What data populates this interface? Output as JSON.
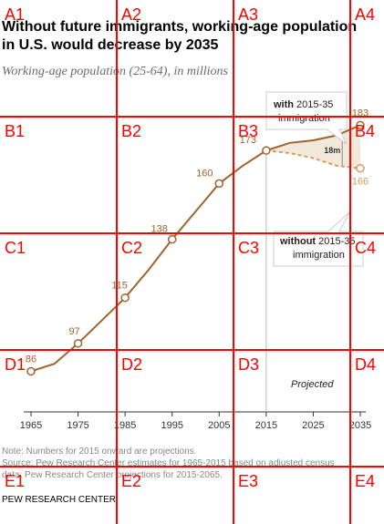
{
  "chart_data": {
    "type": "line",
    "title_line1": "Without future immigrants, working-age population",
    "title_line2": "in U.S. would decrease by 2035",
    "subtitle": "Working-age population (25-64), in millions",
    "x_ticks": [
      1965,
      1975,
      1985,
      1995,
      2005,
      2015,
      2025,
      2035
    ],
    "xlim": [
      1965,
      2035
    ],
    "ylim": [
      70,
      200
    ],
    "series": [
      {
        "name": "with 2015-35 immigration",
        "color": "#a0632c",
        "x": [
          1965,
          1970,
          1975,
          1980,
          1985,
          1990,
          1995,
          2000,
          2005,
          2010,
          2015,
          2020,
          2025,
          2030,
          2035
        ],
        "y": [
          86,
          89,
          97,
          106,
          115,
          126,
          138,
          149,
          160,
          167,
          173,
          176,
          177,
          179,
          183
        ],
        "labeled_points": [
          {
            "x": 1965,
            "y": 86,
            "label": "86"
          },
          {
            "x": 1975,
            "y": 97,
            "label": "97"
          },
          {
            "x": 1985,
            "y": 115,
            "label": "115"
          },
          {
            "x": 1995,
            "y": 138,
            "label": "138"
          },
          {
            "x": 2005,
            "y": 160,
            "label": "160"
          },
          {
            "x": 2015,
            "y": 173,
            "label": "173"
          },
          {
            "x": 2035,
            "y": 183,
            "label": "183"
          }
        ]
      },
      {
        "name": "without 2015-35 immigration",
        "color": "#d99a5a",
        "dashed": true,
        "x": [
          2015,
          2020,
          2025,
          2030,
          2035
        ],
        "y": [
          173,
          172,
          170,
          167,
          166
        ],
        "labeled_points": [
          {
            "x": 2035,
            "y": 166,
            "label": "166"
          }
        ]
      }
    ],
    "gap_label": "18m",
    "projection_divider_x": 2015,
    "projected_label": "Projected",
    "callouts": {
      "with_bold": "with",
      "with_rest": " 2015-35",
      "with_line2": "immigration",
      "without_bold": "without",
      "without_rest": " 2015-35",
      "without_line2": "immigration"
    },
    "note": "Note: Numbers for 2015 onward are projections.",
    "source_line1": "Source: Pew Research Center estimates for 1965-2015 based on adjusted census",
    "source_line2": "data; Pew Research Center projections for 2015-2065.",
    "brand": "PEW RESEARCH CENTER"
  },
  "overlay_grid": {
    "color": "#ff0000",
    "labels": [
      {
        "id": "A1",
        "col": 0,
        "row": 0
      },
      {
        "id": "A2",
        "col": 1,
        "row": 0
      },
      {
        "id": "A3",
        "col": 2,
        "row": 0
      },
      {
        "id": "A4",
        "col": 3,
        "row": 0
      },
      {
        "id": "B1",
        "col": 0,
        "row": 1
      },
      {
        "id": "B2",
        "col": 1,
        "row": 1
      },
      {
        "id": "B3",
        "col": 2,
        "row": 1
      },
      {
        "id": "B4",
        "col": 3,
        "row": 1
      },
      {
        "id": "C1",
        "col": 0,
        "row": 2
      },
      {
        "id": "C2",
        "col": 1,
        "row": 2
      },
      {
        "id": "C3",
        "col": 2,
        "row": 2
      },
      {
        "id": "C4",
        "col": 3,
        "row": 2
      },
      {
        "id": "D1",
        "col": 0,
        "row": 3
      },
      {
        "id": "D2",
        "col": 1,
        "row": 3
      },
      {
        "id": "D3",
        "col": 2,
        "row": 3
      },
      {
        "id": "D4",
        "col": 3,
        "row": 3
      },
      {
        "id": "E1",
        "col": 0,
        "row": 4
      },
      {
        "id": "E2",
        "col": 1,
        "row": 4
      },
      {
        "id": "E3",
        "col": 2,
        "row": 4
      },
      {
        "id": "E4",
        "col": 3,
        "row": 4
      }
    ]
  }
}
